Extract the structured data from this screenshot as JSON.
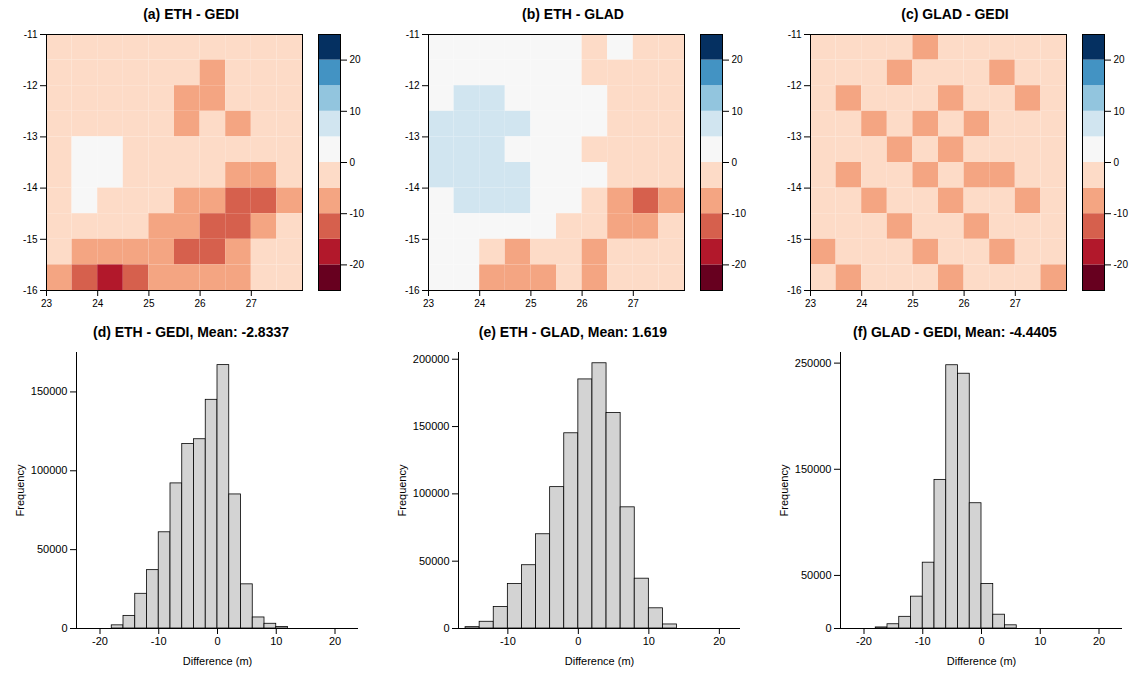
{
  "chart_data": [
    {
      "type": "heatmap",
      "title": "(a) ETH - GEDI",
      "xlim": [
        23,
        28
      ],
      "xticks": [
        23,
        24,
        25,
        26,
        27
      ],
      "ylim": [
        -16,
        -11
      ],
      "yticks": [
        -16,
        -15,
        -14,
        -13,
        -12,
        -11
      ],
      "x": [
        23.25,
        23.75,
        24.25,
        24.75,
        25.25,
        25.75,
        26.25,
        26.75,
        27.25,
        27.75
      ],
      "y": [
        -11.25,
        -11.75,
        -12.25,
        -12.75,
        -13.25,
        -13.75,
        -14.25,
        -14.75,
        -15.25,
        -15.75
      ],
      "z": [
        [
          -3,
          -2,
          -3,
          -4,
          -3,
          -4,
          -5,
          -4,
          -3,
          -4
        ],
        [
          -2,
          -3,
          -2,
          -3,
          -4,
          -4,
          -6,
          -5,
          -4,
          -3
        ],
        [
          -3,
          -2,
          -4,
          -3,
          -5,
          -6,
          -7,
          -4,
          -5,
          -3
        ],
        [
          -1,
          -2,
          -3,
          -4,
          -5,
          -6,
          -5,
          -6,
          -4,
          -2
        ],
        [
          -2,
          1,
          0,
          -2,
          -4,
          -3,
          -5,
          -4,
          -2,
          -3
        ],
        [
          -4,
          2,
          1,
          -1,
          -3,
          -2,
          -4,
          -6,
          -8,
          -5
        ],
        [
          -2,
          0,
          -1,
          -3,
          -4,
          -6,
          -8,
          -12,
          -13,
          -9
        ],
        [
          -3,
          -2,
          -3,
          -5,
          -7,
          -10,
          -13,
          -11,
          -6,
          -5
        ],
        [
          -4,
          -6,
          -9,
          -8,
          -6,
          -12,
          -15,
          -8,
          -5,
          -4
        ],
        [
          -6,
          -12,
          -16,
          -14,
          -8,
          -7,
          -9,
          -6,
          -4,
          -3
        ]
      ],
      "colorbar": {
        "lim": [
          -25,
          25
        ],
        "ticks": [
          -20,
          -10,
          0,
          10,
          20
        ],
        "breaks": [
          -20,
          -15,
          -10,
          -5,
          0,
          5,
          10,
          15,
          20
        ]
      }
    },
    {
      "type": "heatmap",
      "title": "(b) ETH - GLAD",
      "xlim": [
        23,
        28
      ],
      "xticks": [
        23,
        24,
        25,
        26,
        27
      ],
      "ylim": [
        -16,
        -11
      ],
      "yticks": [
        -16,
        -15,
        -14,
        -13,
        -12,
        -11
      ],
      "x": [
        23.25,
        23.75,
        24.25,
        24.75,
        25.25,
        25.75,
        26.25,
        26.75,
        27.25,
        27.75
      ],
      "y": [
        -11.25,
        -11.75,
        -12.25,
        -12.75,
        -13.25,
        -13.75,
        -14.25,
        -14.75,
        -15.25,
        -15.75
      ],
      "z": [
        [
          1,
          2,
          3,
          2,
          2,
          1,
          -1,
          0,
          -1,
          -2
        ],
        [
          3,
          4,
          3,
          4,
          2,
          1,
          -2,
          -1,
          -2,
          -1
        ],
        [
          4,
          5,
          6,
          4,
          3,
          2,
          0,
          -2,
          -1,
          -2
        ],
        [
          5,
          6,
          5,
          6,
          4,
          3,
          1,
          -1,
          -2,
          -1
        ],
        [
          6,
          7,
          5,
          4,
          3,
          4,
          -1,
          -3,
          -2,
          -1
        ],
        [
          5,
          8,
          7,
          6,
          4,
          2,
          0,
          -2,
          -4,
          -3
        ],
        [
          4,
          7,
          8,
          5,
          3,
          1,
          -3,
          -8,
          -14,
          -6
        ],
        [
          2,
          4,
          3,
          2,
          0,
          -1,
          -4,
          -6,
          -8,
          -4
        ],
        [
          1,
          2,
          -5,
          -6,
          -5,
          -4,
          -6,
          -5,
          -3,
          -2
        ],
        [
          0,
          1,
          -7,
          -8,
          -6,
          -5,
          -6,
          -4,
          -3,
          -2
        ]
      ],
      "colorbar": {
        "lim": [
          -25,
          25
        ],
        "ticks": [
          -20,
          -10,
          0,
          10,
          20
        ],
        "breaks": [
          -20,
          -15,
          -10,
          -5,
          0,
          5,
          10,
          15,
          20
        ]
      }
    },
    {
      "type": "heatmap",
      "title": "(c) GLAD - GEDI",
      "xlim": [
        23,
        28
      ],
      "xticks": [
        23,
        24,
        25,
        26,
        27
      ],
      "ylim": [
        -16,
        -11
      ],
      "yticks": [
        -16,
        -15,
        -14,
        -13,
        -12,
        -11
      ],
      "x": [
        23.25,
        23.75,
        24.25,
        24.75,
        25.25,
        25.75,
        26.25,
        26.75,
        27.25,
        27.75
      ],
      "y": [
        -11.25,
        -11.75,
        -12.25,
        -12.75,
        -13.25,
        -13.75,
        -14.25,
        -14.75,
        -15.25,
        -15.75
      ],
      "z": [
        [
          -4,
          -5,
          -4,
          -5,
          -6,
          -5,
          -4,
          -5,
          -4,
          -5
        ],
        [
          -5,
          -4,
          -5,
          -6,
          -5,
          -4,
          -5,
          -6,
          -5,
          -4
        ],
        [
          -4,
          -6,
          -5,
          -4,
          -5,
          -6,
          -5,
          -4,
          -6,
          -5
        ],
        [
          -5,
          -4,
          -6,
          -5,
          -7,
          -5,
          -6,
          -5,
          -4,
          -5
        ],
        [
          -4,
          -5,
          -4,
          -6,
          -5,
          -6,
          -4,
          -5,
          -5,
          -4
        ],
        [
          -5,
          -6,
          -5,
          -4,
          -6,
          -5,
          -7,
          -6,
          -4,
          -5
        ],
        [
          -4,
          -5,
          -6,
          -5,
          -4,
          -6,
          -5,
          -5,
          -6,
          -4
        ],
        [
          -5,
          -4,
          -5,
          -6,
          -5,
          -4,
          -6,
          -5,
          -4,
          -5
        ],
        [
          -6,
          -5,
          -4,
          -5,
          -6,
          -5,
          -4,
          -6,
          -5,
          -4
        ],
        [
          -4,
          -6,
          -5,
          -4,
          -5,
          -6,
          -5,
          -4,
          -5,
          -6
        ]
      ],
      "colorbar": {
        "lim": [
          -25,
          25
        ],
        "ticks": [
          -20,
          -10,
          0,
          10,
          20
        ],
        "breaks": [
          -20,
          -15,
          -10,
          -5,
          0,
          5,
          10,
          15,
          20
        ]
      }
    },
    {
      "type": "histogram",
      "title": "(d) ETH - GEDI, Mean: -2.8337",
      "x_label": "Difference (m)",
      "y_label": "Frequency",
      "bins": [
        -18,
        -16,
        -14,
        -12,
        -10,
        -8,
        -6,
        -4,
        -2,
        0,
        2,
        4,
        6,
        8,
        10,
        12
      ],
      "values": [
        2000,
        8000,
        22000,
        37000,
        61000,
        92000,
        117000,
        120000,
        145000,
        167000,
        85000,
        28000,
        7000,
        3000,
        1000
      ],
      "xlim": [
        -24,
        24
      ],
      "xticks": [
        -20,
        -10,
        0,
        10,
        20
      ],
      "ylim": [
        0,
        175000
      ],
      "yticks": [
        0,
        50000,
        100000,
        150000
      ]
    },
    {
      "type": "histogram",
      "title": "(e) ETH - GLAD, Mean: 1.619",
      "x_label": "Difference (m)",
      "y_label": "Frequency",
      "bins": [
        -16,
        -14,
        -12,
        -10,
        -8,
        -6,
        -4,
        -2,
        0,
        2,
        4,
        6,
        8,
        10,
        12,
        14
      ],
      "values": [
        1000,
        5000,
        16000,
        33000,
        47000,
        70000,
        105000,
        145000,
        185000,
        197000,
        160000,
        90000,
        37000,
        15000,
        3000
      ],
      "xlim": [
        -17,
        23
      ],
      "xticks": [
        -10,
        0,
        10,
        20
      ],
      "ylim": [
        0,
        205000
      ],
      "yticks": [
        0,
        50000,
        100000,
        150000,
        200000
      ]
    },
    {
      "type": "histogram",
      "title": "(f) GLAD - GEDI, Mean: -4.4405",
      "x_label": "Difference (m)",
      "y_label": "Frequency",
      "bins": [
        -18,
        -16,
        -14,
        -12,
        -10,
        -8,
        -6,
        -4,
        -2,
        0,
        2,
        4,
        6
      ],
      "values": [
        1000,
        4000,
        11000,
        30000,
        62000,
        140000,
        248000,
        240000,
        118000,
        42000,
        13000,
        3000
      ],
      "xlim": [
        -24,
        24
      ],
      "xticks": [
        -20,
        -10,
        0,
        10,
        20
      ],
      "ylim": [
        0,
        260000
      ],
      "yticks": [
        0,
        50000,
        150000,
        250000
      ]
    }
  ]
}
